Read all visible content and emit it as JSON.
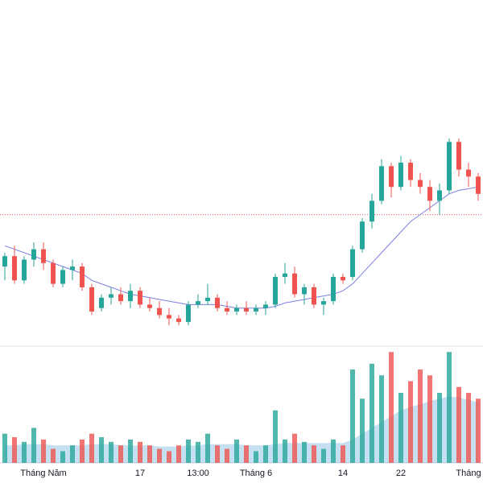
{
  "chart_data": {
    "type": "candlestick",
    "categories": [
      null,
      null,
      null,
      null,
      "Tháng Năm",
      null,
      null,
      null,
      null,
      null,
      null,
      null,
      null,
      null,
      "17",
      null,
      null,
      null,
      null,
      null,
      "13:00",
      null,
      null,
      null,
      null,
      null,
      "Tháng 6",
      null,
      null,
      null,
      null,
      null,
      null,
      null,
      null,
      "14",
      null,
      null,
      null,
      null,
      null,
      "22",
      null,
      null,
      null,
      null,
      null,
      null,
      "Tháng",
      null
    ],
    "open": [
      22.3,
      22.6,
      21.9,
      22.5,
      22.8,
      22.4,
      21.8,
      22.2,
      22.3,
      21.7,
      21.1,
      21.4,
      21.5,
      21.3,
      21.6,
      21.2,
      21.1,
      20.9,
      20.8,
      20.7,
      21.2,
      21.3,
      21.4,
      21.1,
      21.0,
      21.1,
      21.0,
      21.1,
      21.2,
      22.0,
      22.1,
      21.5,
      21.7,
      21.2,
      21.3,
      22.0,
      22.0,
      22.8,
      23.6,
      24.2,
      25.2,
      24.6,
      25.3,
      24.8,
      24.6,
      24.2,
      24.5,
      25.9,
      25.1,
      24.9
    ],
    "high": [
      22.7,
      22.9,
      22.6,
      23.0,
      23.0,
      22.5,
      22.3,
      22.5,
      22.4,
      21.8,
      21.5,
      21.7,
      21.7,
      21.8,
      21.7,
      21.4,
      21.3,
      21.1,
      20.9,
      21.3,
      21.5,
      21.8,
      21.5,
      21.3,
      21.2,
      21.3,
      21.2,
      21.3,
      22.1,
      22.4,
      22.3,
      21.8,
      21.8,
      21.4,
      22.1,
      22.1,
      22.9,
      23.7,
      24.4,
      25.4,
      25.3,
      25.5,
      25.4,
      25.0,
      24.8,
      24.7,
      26.0,
      26.0,
      25.3,
      25.0
    ],
    "low": [
      21.9,
      21.8,
      21.8,
      22.3,
      22.2,
      21.7,
      21.7,
      21.9,
      21.6,
      20.9,
      21.0,
      21.2,
      21.2,
      21.1,
      21.1,
      21.0,
      20.8,
      20.6,
      20.6,
      20.6,
      21.1,
      21.2,
      21.0,
      20.9,
      20.9,
      20.9,
      20.9,
      20.9,
      21.1,
      21.8,
      21.4,
      21.2,
      21.1,
      20.9,
      21.2,
      21.8,
      21.9,
      22.7,
      23.4,
      24.1,
      24.3,
      24.5,
      24.6,
      24.4,
      23.9,
      23.8,
      24.4,
      24.9,
      24.6,
      24.2
    ],
    "close": [
      22.6,
      21.9,
      22.5,
      22.8,
      22.4,
      21.8,
      22.2,
      22.3,
      21.7,
      21.0,
      21.4,
      21.5,
      21.3,
      21.6,
      21.2,
      21.1,
      20.9,
      20.8,
      20.7,
      21.2,
      21.3,
      21.4,
      21.1,
      21.0,
      21.1,
      21.0,
      21.1,
      21.2,
      22.0,
      22.1,
      21.5,
      21.7,
      21.2,
      21.3,
      22.0,
      21.9,
      22.8,
      23.6,
      24.2,
      25.2,
      24.6,
      25.3,
      24.8,
      24.6,
      24.2,
      24.5,
      25.9,
      25.1,
      24.9,
      24.4
    ],
    "ylim": [
      20,
      30
    ],
    "up_color": "#26a69a",
    "down_color": "#ef5350",
    "ma": {
      "color": "#7b7fe0",
      "values": [
        22.9,
        22.8,
        22.7,
        22.6,
        22.5,
        22.4,
        22.3,
        22.2,
        22.1,
        21.9,
        21.8,
        21.7,
        21.6,
        21.5,
        21.45,
        21.4,
        21.35,
        21.3,
        21.25,
        21.2,
        21.2,
        21.2,
        21.2,
        21.15,
        21.1,
        21.1,
        21.1,
        21.1,
        21.15,
        21.25,
        21.3,
        21.35,
        21.4,
        21.45,
        21.5,
        21.6,
        21.8,
        22.1,
        22.4,
        22.7,
        23.0,
        23.3,
        23.6,
        23.8,
        24.0,
        24.2,
        24.4,
        24.5,
        24.55,
        24.6
      ]
    },
    "price_line": {
      "value": 23.8,
      "color": "#ef5350"
    },
    "volume": {
      "ylim": [
        0,
        100
      ],
      "values": [
        25,
        22,
        18,
        30,
        20,
        12,
        10,
        15,
        20,
        25,
        22,
        18,
        15,
        20,
        18,
        15,
        12,
        10,
        15,
        20,
        18,
        25,
        15,
        12,
        20,
        15,
        10,
        15,
        45,
        20,
        25,
        18,
        15,
        12,
        20,
        15,
        80,
        55,
        85,
        75,
        95,
        60,
        70,
        80,
        75,
        60,
        95,
        65,
        60,
        55
      ],
      "volume_ma": {
        "color": "#5aa7d6",
        "values": [
          15,
          15,
          16,
          16,
          16,
          15,
          15,
          15,
          15,
          16,
          16,
          16,
          15,
          15,
          15,
          15,
          14,
          14,
          14,
          15,
          15,
          16,
          16,
          16,
          16,
          15,
          15,
          15,
          16,
          17,
          17,
          17,
          17,
          17,
          17,
          17,
          20,
          25,
          30,
          35,
          40,
          45,
          48,
          50,
          53,
          55,
          57,
          56,
          54,
          52
        ]
      }
    }
  }
}
